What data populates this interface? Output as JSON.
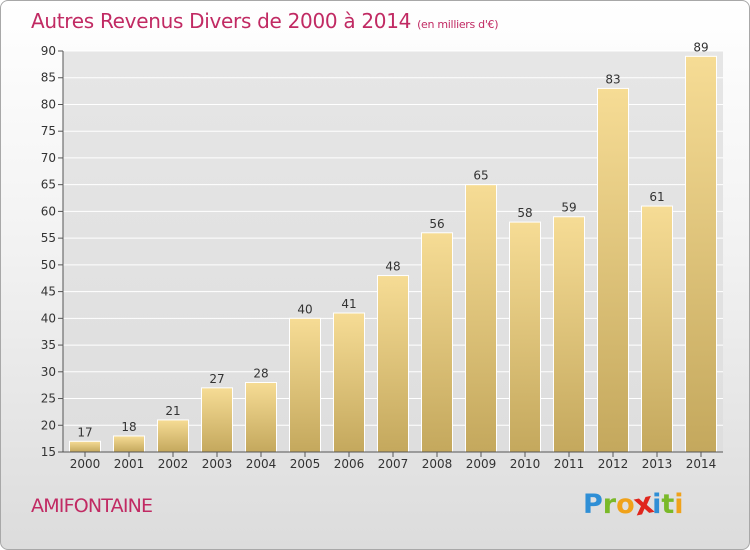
{
  "header": {
    "title": "Autres Revenus Divers de 2000 à 2014",
    "subtitle": "(en milliers d'€)"
  },
  "footer": {
    "commune": "AMIFONTAINE",
    "logo_letters": [
      {
        "char": "P",
        "color": "#2f8fd6"
      },
      {
        "char": "r",
        "color": "#7ab929"
      },
      {
        "char": "o",
        "color": "#f0a21a"
      },
      {
        "char": "x",
        "color": "#e0261d"
      },
      {
        "char": "i",
        "color": "#2f8fd6"
      },
      {
        "char": "t",
        "color": "#7ab929"
      },
      {
        "char": "i",
        "color": "#f0a21a"
      }
    ]
  },
  "colors": {
    "accent": "#c12a63",
    "bar_top": "#f6dc95",
    "bar_bottom": "#c4a85d",
    "grid": "#ffffff"
  },
  "chart_data": {
    "type": "bar",
    "title": "Autres Revenus Divers de 2000 à 2014",
    "categories": [
      "2000",
      "2001",
      "2002",
      "2003",
      "2004",
      "2005",
      "2006",
      "2007",
      "2008",
      "2009",
      "2010",
      "2011",
      "2012",
      "2013",
      "2014"
    ],
    "values": [
      17,
      18,
      21,
      27,
      28,
      40,
      41,
      48,
      56,
      65,
      58,
      59,
      83,
      61,
      89
    ],
    "ylim": [
      15,
      90
    ],
    "yticks": [
      15,
      20,
      25,
      30,
      35,
      40,
      45,
      50,
      55,
      60,
      65,
      70,
      75,
      80,
      85,
      90
    ],
    "grid": true,
    "data_labels": true
  }
}
